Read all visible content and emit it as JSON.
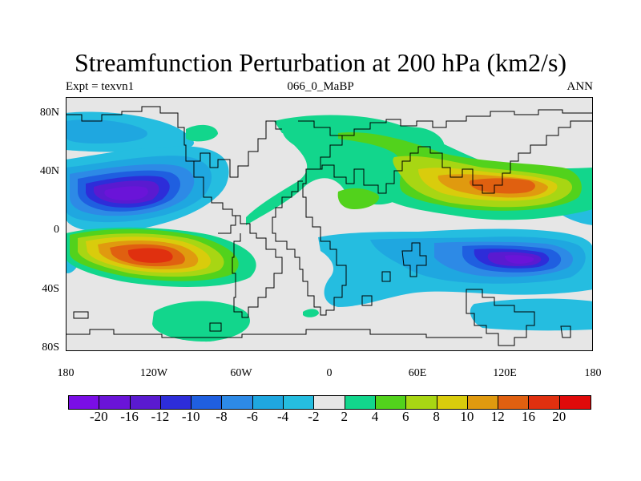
{
  "title": "Streamfunction Perturbation at 200 hPa (km2/s)",
  "subtitle_left": "Expt = texvn1",
  "subtitle_center": "066_0_MaBP",
  "subtitle_right": "ANN",
  "lat_labels": [
    "80N",
    "40N",
    "0",
    "40S",
    "80S"
  ],
  "lon_labels": [
    "180",
    "120W",
    "60W",
    "0",
    "60E",
    "120E",
    "180"
  ],
  "colorbar": {
    "colors": [
      "#7a0ee6",
      "#6a14d8",
      "#5a1ad0",
      "#2d2dd9",
      "#1f5fe0",
      "#2d8ae6",
      "#1fa7e0",
      "#25bde0",
      "#e6e6e6",
      "#12d68c",
      "#52d21c",
      "#a8d613",
      "#d9cc0c",
      "#e09a0f",
      "#e06010",
      "#e0300f",
      "#e00a0a"
    ],
    "labels": [
      "-20",
      "-16",
      "-12",
      "-10",
      "-8",
      "-6",
      "-4",
      "-2",
      "2",
      "4",
      "6",
      "8",
      "10",
      "12",
      "16",
      "20"
    ]
  }
}
